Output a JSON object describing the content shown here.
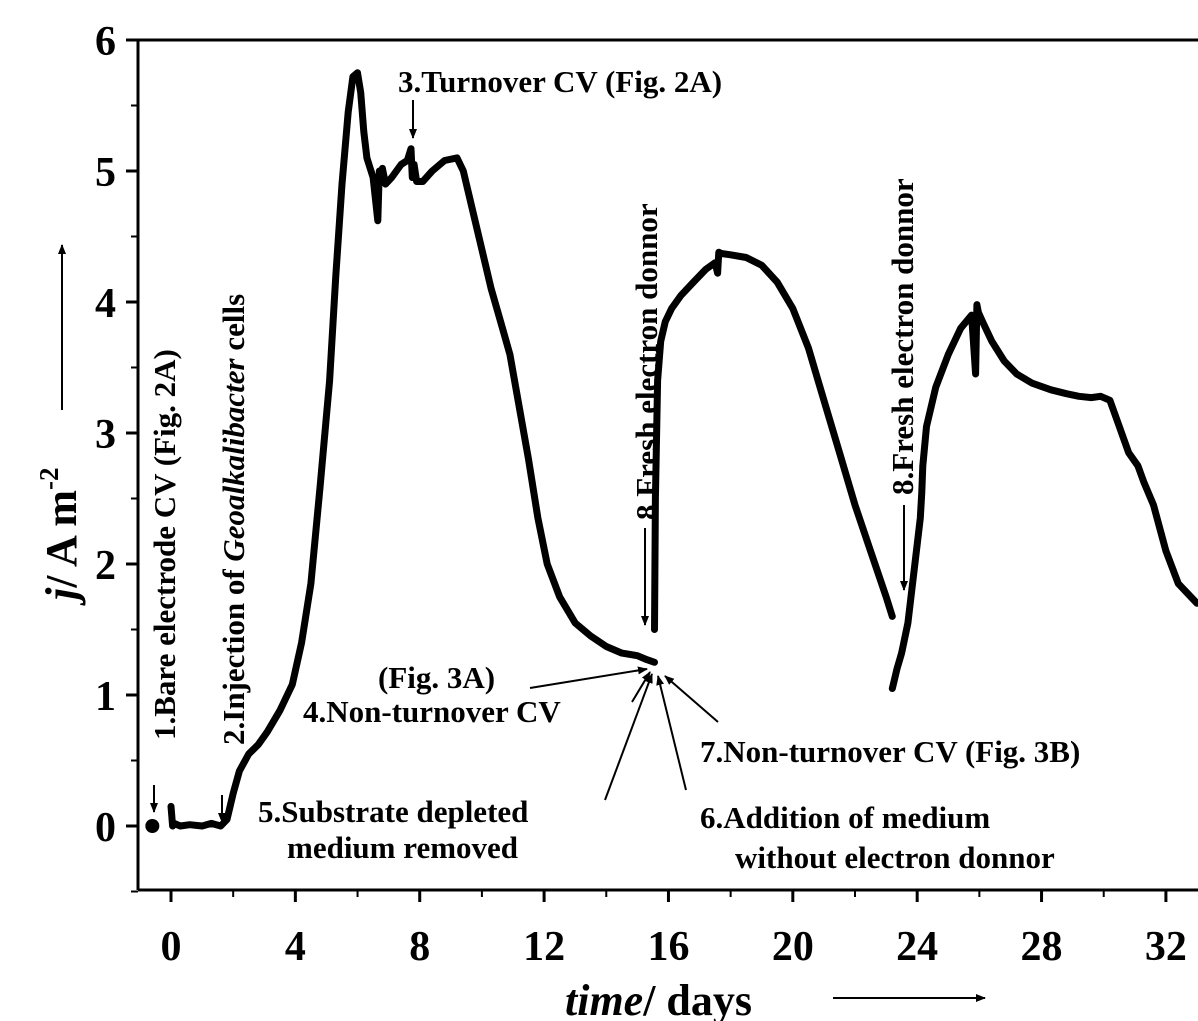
{
  "chart_data": {
    "type": "line",
    "xlabel": {
      "italic": "time",
      "rest": "/ days"
    },
    "ylabel": {
      "italic": "j",
      "rest": "/ A m",
      "sup": "-2"
    },
    "xlim": [
      -1,
      33
    ],
    "ylim": [
      -0.5,
      6
    ],
    "xticks": [
      0,
      4,
      8,
      12,
      16,
      20,
      24,
      28,
      32
    ],
    "yticks": [
      0,
      1,
      2,
      3,
      4,
      5,
      6
    ],
    "grid": false,
    "legend": "none",
    "line_color": "#000000",
    "start_marker": {
      "x": -0.6,
      "y": 0.0
    },
    "series": [
      {
        "x": [
          0.0,
          0.05,
          0.1,
          0.3,
          0.6,
          1.0,
          1.3,
          1.6,
          1.8,
          2.0,
          2.2,
          2.5,
          2.8,
          3.1,
          3.5,
          3.9,
          4.2,
          4.5,
          4.8,
          5.1,
          5.3,
          5.5,
          5.7,
          5.85,
          6.0,
          6.1,
          6.2,
          6.3,
          6.5,
          6.65,
          6.7,
          6.75,
          6.8,
          6.9,
          7.1,
          7.4,
          7.6,
          7.72,
          7.76,
          7.82,
          7.9,
          8.1,
          8.4,
          8.8,
          9.2,
          9.4,
          9.7,
          10.0,
          10.3,
          10.6,
          10.9,
          11.2,
          11.5,
          11.8,
          12.1,
          12.5,
          13.0,
          13.5,
          14.0,
          14.5,
          15.0,
          15.3,
          15.55
        ],
        "y": [
          0.15,
          0.0,
          0.02,
          0.0,
          0.01,
          0.0,
          0.02,
          0.0,
          0.05,
          0.25,
          0.42,
          0.55,
          0.62,
          0.72,
          0.88,
          1.08,
          1.4,
          1.85,
          2.6,
          3.4,
          4.2,
          4.9,
          5.45,
          5.72,
          5.75,
          5.6,
          5.3,
          5.1,
          4.95,
          4.62,
          5.0,
          4.92,
          5.02,
          4.9,
          4.95,
          5.05,
          5.08,
          5.17,
          4.95,
          5.05,
          4.92,
          4.92,
          5.0,
          5.08,
          5.1,
          5.0,
          4.7,
          4.4,
          4.1,
          3.85,
          3.6,
          3.2,
          2.8,
          2.35,
          2.0,
          1.75,
          1.55,
          1.45,
          1.37,
          1.32,
          1.3,
          1.27,
          1.25
        ]
      },
      {
        "x": [
          15.55,
          15.58,
          15.65,
          15.75,
          15.9,
          16.1,
          16.4,
          16.8,
          17.2,
          17.5,
          17.58,
          17.62,
          17.7,
          18.0,
          18.5,
          19.0,
          19.5,
          20.0,
          20.5,
          21.0,
          21.5,
          22.0,
          22.5,
          23.0,
          23.2
        ],
        "y": [
          1.5,
          2.5,
          3.4,
          3.7,
          3.85,
          3.95,
          4.05,
          4.15,
          4.25,
          4.3,
          4.22,
          4.38,
          4.37,
          4.36,
          4.34,
          4.28,
          4.15,
          3.95,
          3.65,
          3.25,
          2.85,
          2.45,
          2.1,
          1.75,
          1.6
        ]
      },
      {
        "x": [
          23.2,
          23.25,
          23.35,
          23.5,
          23.7,
          23.9,
          24.1,
          24.15,
          24.18,
          24.3,
          24.6,
          25.0,
          25.4,
          25.75,
          25.88,
          25.92,
          25.97,
          26.1,
          26.4,
          26.8,
          27.2,
          27.7,
          28.3,
          28.8,
          29.2,
          29.6,
          29.9,
          30.2,
          30.5,
          30.8,
          31.1,
          31.3,
          31.6,
          32.0,
          32.4,
          32.8,
          33.0
        ],
        "y": [
          1.05,
          1.1,
          1.2,
          1.32,
          1.55,
          1.95,
          2.35,
          2.55,
          2.75,
          3.05,
          3.35,
          3.6,
          3.8,
          3.9,
          3.45,
          3.98,
          3.92,
          3.85,
          3.7,
          3.55,
          3.45,
          3.38,
          3.33,
          3.3,
          3.28,
          3.27,
          3.28,
          3.25,
          3.05,
          2.85,
          2.75,
          2.62,
          2.45,
          2.1,
          1.85,
          1.75,
          1.7
        ]
      }
    ],
    "annotations": [
      {
        "text": "1.Bare electrode CV (Fig. 2A)"
      },
      {
        "pre": "2.Injection of ",
        "italic": "Geoalkalibacter",
        "post": " cells"
      },
      {
        "text": "3.Turnover CV (Fig. 2A)"
      },
      {
        "text": "(Fig. 3A)"
      },
      {
        "text": "4.Non-turnover CV"
      },
      {
        "text": "5.Substrate depleted"
      },
      {
        "text": "medium removed"
      },
      {
        "text": "6.Addition of medium"
      },
      {
        "text": "without electron donnor"
      },
      {
        "text": "7.Non-turnover CV (Fig. 3B)"
      },
      {
        "text": "8.Fresh electron donnor"
      },
      {
        "text": "8.Fresh electron donnor"
      }
    ]
  }
}
